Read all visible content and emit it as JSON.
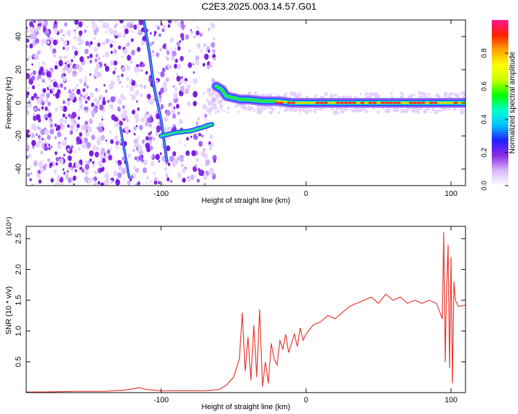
{
  "page": {
    "title": "C2E3.2025.003.14.57.G01"
  },
  "colors": {
    "signal_line": "#e8342c",
    "plot_frame": "#000000",
    "background": "#ffffff"
  },
  "chart_data": [
    {
      "type": "heatmap",
      "xlabel": "Height of straight line (km)",
      "ylabel": "Frequency (Hz)",
      "xlim": [
        -193,
        110
      ],
      "ylim": [
        -50,
        50
      ],
      "x_ticks": [
        -100,
        0,
        100
      ],
      "x_tick_labels": [
        "-100",
        "0",
        "100"
      ],
      "y_ticks": [
        -40,
        -20,
        0,
        20,
        40
      ],
      "y_tick_labels": [
        "-40",
        "-20",
        "0",
        "20",
        "40"
      ],
      "colorbar": {
        "label": "Normalized spectral amplitude",
        "range": [
          0.0,
          1.0
        ],
        "ticks": [
          0.0,
          0.2,
          0.4,
          0.6,
          0.8
        ],
        "tick_labels": [
          "0.0",
          "0.2",
          "0.4",
          "0.6",
          "0.8"
        ],
        "colormap": [
          "#ffffff",
          "#d8b8ff",
          "#8a2be2",
          "#2020ff",
          "#00bfff",
          "#00ffcc",
          "#00ff00",
          "#c8ff00",
          "#ffff00",
          "#ffa500",
          "#ff2000",
          "#ff1493"
        ]
      },
      "features": {
        "noise_region_x": [
          -193,
          -63
        ],
        "main_ridge": [
          [
            -62,
            10
          ],
          [
            -58,
            8
          ],
          [
            -55,
            4
          ],
          [
            -50,
            3
          ],
          [
            -45,
            2
          ],
          [
            -40,
            2
          ],
          [
            -30,
            1
          ],
          [
            -20,
            1
          ],
          [
            -10,
            0
          ],
          [
            0,
            0
          ],
          [
            20,
            0
          ],
          [
            40,
            0
          ],
          [
            60,
            0
          ],
          [
            80,
            0
          ],
          [
            100,
            0
          ],
          [
            110,
            0
          ]
        ],
        "lower_branch": [
          [
            -100,
            -20
          ],
          [
            -90,
            -18
          ],
          [
            -80,
            -17
          ],
          [
            -72,
            -15
          ],
          [
            -65,
            -13
          ]
        ],
        "chirp_streak_1": [
          [
            -112,
            50
          ],
          [
            -108,
            30
          ],
          [
            -105,
            10
          ],
          [
            -100,
            -10
          ],
          [
            -96,
            -35
          ]
        ],
        "chirp_streak_2": [
          [
            -128,
            -15
          ],
          [
            -125,
            -30
          ],
          [
            -122,
            -45
          ]
        ]
      }
    },
    {
      "type": "line",
      "xlabel": "Height of straight line (km)",
      "ylabel": "SNR (10 * v/v)",
      "y_multiplier_label": "(x10⁴)",
      "xlim": [
        -193,
        110
      ],
      "ylim": [
        0,
        2.7
      ],
      "x_ticks": [
        -100,
        0,
        100
      ],
      "x_tick_labels": [
        "-100",
        "0",
        "100"
      ],
      "y_ticks": [
        0.5,
        1.0,
        1.5,
        2.0,
        2.5
      ],
      "y_tick_labels": [
        "0.5",
        "1.0",
        "1.5",
        "2.0",
        "2.5"
      ],
      "series": [
        {
          "color": "#e8342c",
          "x": [
            -193,
            -180,
            -160,
            -140,
            -125,
            -115,
            -110,
            -100,
            -90,
            -80,
            -70,
            -60,
            -55,
            -50,
            -46,
            -44,
            -42,
            -40,
            -38,
            -36,
            -34,
            -32,
            -30,
            -28,
            -26,
            -24,
            -22,
            -20,
            -18,
            -16,
            -14,
            -12,
            -10,
            -8,
            -6,
            -4,
            -2,
            0,
            5,
            10,
            15,
            20,
            25,
            30,
            35,
            40,
            45,
            50,
            55,
            60,
            65,
            70,
            75,
            80,
            85,
            90,
            94,
            95,
            96,
            97,
            98,
            99,
            100,
            101,
            102,
            103,
            104,
            105,
            110
          ],
          "y": [
            0.01,
            0.01,
            0.02,
            0.02,
            0.04,
            0.08,
            0.05,
            0.03,
            0.03,
            0.03,
            0.03,
            0.05,
            0.12,
            0.25,
            0.55,
            1.3,
            0.35,
            0.9,
            0.2,
            1.1,
            0.25,
            1.35,
            0.1,
            0.5,
            0.15,
            0.8,
            0.55,
            0.45,
            0.85,
            0.7,
            0.95,
            0.65,
            0.8,
            0.95,
            0.75,
            1.05,
            0.85,
            0.95,
            1.1,
            1.15,
            1.25,
            1.2,
            1.3,
            1.4,
            1.45,
            1.5,
            1.55,
            1.45,
            1.6,
            1.5,
            1.55,
            1.45,
            1.5,
            1.45,
            1.5,
            1.45,
            1.2,
            2.6,
            0.5,
            1.7,
            2.4,
            0.4,
            2.2,
            0.15,
            1.8,
            1.5,
            1.45,
            1.4,
            1.42
          ]
        }
      ]
    }
  ]
}
